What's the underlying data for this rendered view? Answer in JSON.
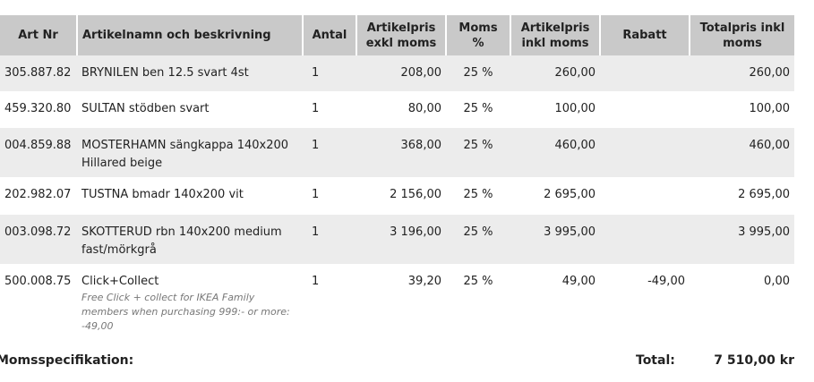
{
  "table": {
    "headers": [
      "Art Nr",
      "Artikelnamn och beskrivning",
      "Antal",
      "Artikelpris exkl moms",
      "Moms %",
      "Artikelpris inkl moms",
      "Rabatt",
      "Totalpris inkl moms"
    ],
    "rows": [
      {
        "cells": [
          "305.887.82",
          "BRYNILEN ben 12.5 svart 4st",
          "1",
          "208,00",
          "25 %",
          "260,00",
          null,
          "260,00"
        ]
      },
      {
        "cells": [
          "459.320.80",
          "SULTAN stödben svart",
          "1",
          "80,00",
          "25 %",
          "100,00",
          null,
          "100,00"
        ]
      },
      {
        "cells": [
          "004.859.88",
          "MOSTERHAMN sängkappa 140x200 Hillared beige",
          "1",
          "368,00",
          "25 %",
          "460,00",
          null,
          "460,00"
        ]
      },
      {
        "cells": [
          "202.982.07",
          "TUSTNA bmadr 140x200 vit",
          "1",
          "2 156,00",
          "25 %",
          "2 695,00",
          null,
          "2 695,00"
        ]
      },
      {
        "cells": [
          "003.098.72",
          "SKOTTERUD rbn 140x200 medium fast/mörkgrå",
          "1",
          "3 196,00",
          "25 %",
          "3 995,00",
          null,
          "3 995,00"
        ]
      },
      {
        "cells": [
          "500.008.75",
          "Click+Collect",
          "1",
          "39,20",
          "25 %",
          "49,00",
          "-49,00",
          "0,00"
        ],
        "note": "Free Click + collect for IKEA Family members when purchasing 999:- or more: -49,00"
      }
    ]
  },
  "footer": {
    "label": "Momsspecifikation:",
    "total_label": "Total:",
    "total": "7 510,00 kr"
  }
}
